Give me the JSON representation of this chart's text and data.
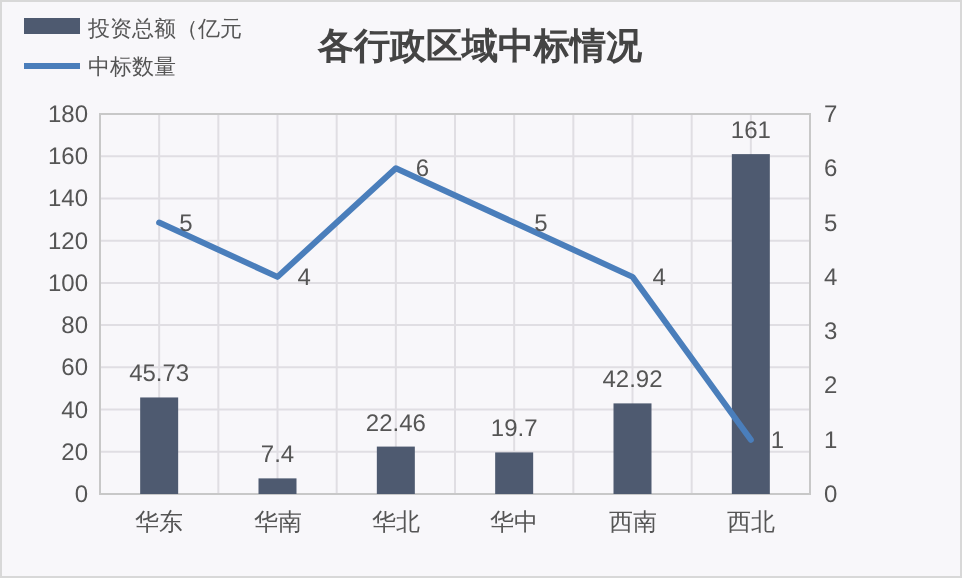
{
  "chart_data": {
    "type": "bar",
    "title": "各行政区域中标情况",
    "categories": [
      "华东",
      "华南",
      "华北",
      "华中",
      "西南",
      "西北"
    ],
    "series": [
      {
        "name": "投资总额（亿元",
        "color": "#4e5a70",
        "values": [
          45.73,
          7.4,
          22.46,
          19.7,
          42.92,
          161
        ]
      },
      {
        "name": "中标数量",
        "type": "line",
        "axis": "y2",
        "color": "#4a7ebb",
        "values": [
          5,
          4,
          6,
          5,
          4,
          1
        ]
      }
    ],
    "ylim": [
      0,
      180
    ],
    "yticks": [
      0,
      20,
      40,
      60,
      80,
      100,
      120,
      140,
      160,
      180
    ],
    "y2lim": [
      0,
      7
    ],
    "y2ticks": [
      0,
      1,
      2,
      3,
      4,
      5,
      6,
      7
    ],
    "grid": true,
    "legend": "top left",
    "data_labels": true,
    "marker": "none",
    "line_style": "solid"
  }
}
